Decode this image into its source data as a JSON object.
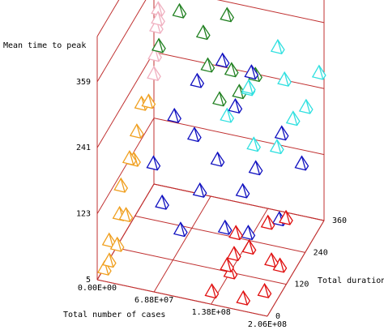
{
  "chart_data": {
    "type": "scatter3d",
    "zlabel": "Mean time to peak",
    "xlabel": "Total number of cases",
    "ylabel": "Total duration",
    "xlim": [
      0,
      206000000
    ],
    "ylim": [
      0,
      360
    ],
    "zlim": [
      5,
      440
    ],
    "xticks": [
      {
        "value": 0,
        "label": "0.00E+00"
      },
      {
        "value": 68800000,
        "label": "6.88E+07"
      },
      {
        "value": 138000000,
        "label": "1.38E+08"
      },
      {
        "value": 206000000,
        "label": "2.06E+08"
      }
    ],
    "yticks": [
      0,
      120,
      240,
      360
    ],
    "zticks": [
      5,
      123,
      241,
      359
    ],
    "grid": true,
    "series": [
      {
        "color": "#f0a020",
        "x": [
          5000000,
          3000000,
          8000000,
          2000000,
          10000000,
          6000000,
          4000000,
          9000000,
          7000000,
          1000000,
          12000000,
          5000000
        ],
        "y": [
          20,
          60,
          100,
          140,
          180,
          220,
          260,
          80,
          40,
          200,
          120,
          300
        ],
        "z": [
          10,
          40,
          70,
          100,
          130,
          160,
          190,
          25,
          15,
          120,
          60,
          175
        ]
      },
      {
        "color": "#f0b0c0",
        "x": [
          2000000,
          5000000,
          3000000,
          8000000,
          4000000,
          6000000,
          2000000,
          7000000
        ],
        "y": [
          350,
          340,
          360,
          345,
          355,
          330,
          340,
          350
        ],
        "z": [
          200,
          240,
          280,
          320,
          360,
          400,
          420,
          300
        ]
      },
      {
        "color": "#208020",
        "x": [
          20000000,
          35000000,
          50000000,
          60000000,
          75000000,
          90000000,
          100000000,
          115000000,
          130000000,
          140000000,
          45000000,
          80000000,
          25000000,
          110000000
        ],
        "y": [
          340,
          300,
          260,
          320,
          280,
          230,
          300,
          250,
          220,
          270,
          350,
          340,
          260,
          200
        ],
        "z": [
          420,
          390,
          370,
          400,
          330,
          300,
          360,
          290,
          270,
          280,
          430,
          410,
          300,
          260
        ]
      },
      {
        "color": "#30e0e0",
        "x": [
          100000000,
          120000000,
          140000000,
          160000000,
          180000000,
          200000000,
          130000000,
          170000000,
          150000000,
          190000000
        ],
        "y": [
          300,
          330,
          260,
          350,
          300,
          360,
          280,
          250,
          360,
          330
        ],
        "z": [
          180,
          220,
          160,
          240,
          200,
          260,
          250,
          170,
          290,
          210
        ]
      },
      {
        "color": "#1010c0",
        "x": [
          30000000,
          50000000,
          70000000,
          90000000,
          110000000,
          130000000,
          150000000,
          170000000,
          190000000,
          60000000,
          80000000,
          100000000,
          120000000,
          140000000,
          160000000,
          40000000,
          200000000,
          85000000
        ],
        "y": [
          200,
          150,
          250,
          180,
          300,
          130,
          220,
          280,
          160,
          320,
          110,
          240,
          350,
          190,
          120,
          280,
          250,
          350
        ],
        "z": [
          120,
          80,
          160,
          100,
          200,
          70,
          140,
          180,
          90,
          220,
          60,
          130,
          240,
          110,
          75,
          170,
          150,
          250
        ]
      },
      {
        "color": "#e01010",
        "x": [
          135000000,
          150000000,
          165000000,
          180000000,
          195000000,
          206000000,
          145000000,
          175000000,
          190000000,
          160000000,
          200000000,
          140000000
        ],
        "y": [
          20,
          60,
          100,
          140,
          40,
          80,
          120,
          10,
          110,
          30,
          150,
          90
        ],
        "z": [
          10,
          30,
          60,
          90,
          20,
          50,
          70,
          15,
          40,
          80,
          100,
          25
        ]
      }
    ]
  }
}
